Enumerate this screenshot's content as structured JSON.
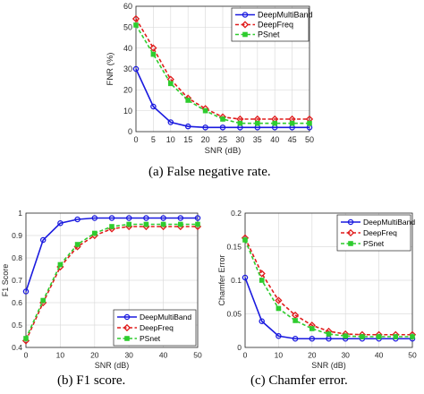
{
  "captions": {
    "a": "(a) False negative rate.",
    "b": "(b) F1 score.",
    "c": "(c) Chamfer error."
  },
  "colors": {
    "DeepMultiBand": "#1a1adf",
    "DeepFreq": "#e01b1b",
    "PSnet": "#2ecc2e"
  },
  "chart_data": [
    {
      "id": "fnr",
      "type": "line",
      "title": "",
      "xlabel": "SNR (dB)",
      "ylabel": "FNR (%)",
      "xlim": [
        0,
        50
      ],
      "ylim": [
        0,
        60
      ],
      "xticks": [
        0,
        5,
        10,
        15,
        20,
        25,
        30,
        35,
        40,
        45,
        50
      ],
      "yticks": [
        0,
        10,
        20,
        30,
        40,
        50,
        60
      ],
      "grid": true,
      "legend_position": "top-right",
      "x": [
        0,
        5,
        10,
        15,
        20,
        25,
        30,
        35,
        40,
        45,
        50
      ],
      "series": [
        {
          "name": "DeepMultiBand",
          "marker": "circle",
          "line": "solid",
          "values": [
            30,
            12,
            4.5,
            2.5,
            2,
            2,
            2,
            2,
            2,
            2,
            2
          ]
        },
        {
          "name": "DeepFreq",
          "marker": "diamond",
          "line": "dashed",
          "values": [
            54,
            40,
            25,
            16,
            11,
            7,
            6,
            6,
            6,
            6,
            6
          ]
        },
        {
          "name": "PSnet",
          "marker": "square",
          "line": "dashed",
          "values": [
            51,
            37,
            23,
            15,
            10,
            6,
            4,
            4,
            4,
            4,
            4
          ]
        }
      ]
    },
    {
      "id": "f1",
      "type": "line",
      "title": "",
      "xlabel": "SNR (dB)",
      "ylabel": "F1 Score",
      "xlim": [
        0,
        50
      ],
      "ylim": [
        0.4,
        1
      ],
      "xticks": [
        0,
        10,
        20,
        30,
        40,
        50
      ],
      "yticks": [
        0.4,
        0.5,
        0.6,
        0.7,
        0.8,
        0.9,
        1
      ],
      "grid": true,
      "legend_position": "bottom-right",
      "x": [
        0,
        5,
        10,
        15,
        20,
        25,
        30,
        35,
        40,
        45,
        50
      ],
      "series": [
        {
          "name": "DeepMultiBand",
          "marker": "circle",
          "line": "solid",
          "values": [
            0.65,
            0.88,
            0.955,
            0.972,
            0.978,
            0.978,
            0.978,
            0.978,
            0.978,
            0.978,
            0.978
          ]
        },
        {
          "name": "DeepFreq",
          "marker": "diamond",
          "line": "dashed",
          "values": [
            0.43,
            0.6,
            0.76,
            0.85,
            0.9,
            0.93,
            0.94,
            0.94,
            0.94,
            0.94,
            0.94
          ]
        },
        {
          "name": "PSnet",
          "marker": "square",
          "line": "dashed",
          "values": [
            0.44,
            0.61,
            0.77,
            0.86,
            0.91,
            0.94,
            0.95,
            0.95,
            0.95,
            0.95,
            0.95
          ]
        }
      ]
    },
    {
      "id": "chamfer",
      "type": "line",
      "title": "",
      "xlabel": "SNR (dB)",
      "ylabel": "Chamfer Error",
      "xlim": [
        0,
        50
      ],
      "ylim": [
        0,
        0.2
      ],
      "xticks": [
        0,
        10,
        20,
        30,
        40,
        50
      ],
      "yticks": [
        0,
        0.05,
        0.1,
        0.15,
        0.2
      ],
      "grid": true,
      "legend_position": "top-right",
      "x": [
        0,
        5,
        10,
        15,
        20,
        25,
        30,
        35,
        40,
        45,
        50
      ],
      "series": [
        {
          "name": "DeepMultiBand",
          "marker": "circle",
          "line": "solid",
          "values": [
            0.104,
            0.039,
            0.017,
            0.013,
            0.013,
            0.013,
            0.013,
            0.013,
            0.013,
            0.013,
            0.013
          ]
        },
        {
          "name": "DeepFreq",
          "marker": "diamond",
          "line": "dashed",
          "values": [
            0.163,
            0.11,
            0.07,
            0.048,
            0.033,
            0.024,
            0.02,
            0.019,
            0.019,
            0.019,
            0.019
          ]
        },
        {
          "name": "PSnet",
          "marker": "square",
          "line": "dashed",
          "values": [
            0.16,
            0.1,
            0.058,
            0.04,
            0.028,
            0.02,
            0.017,
            0.016,
            0.016,
            0.016,
            0.016
          ]
        }
      ]
    }
  ]
}
